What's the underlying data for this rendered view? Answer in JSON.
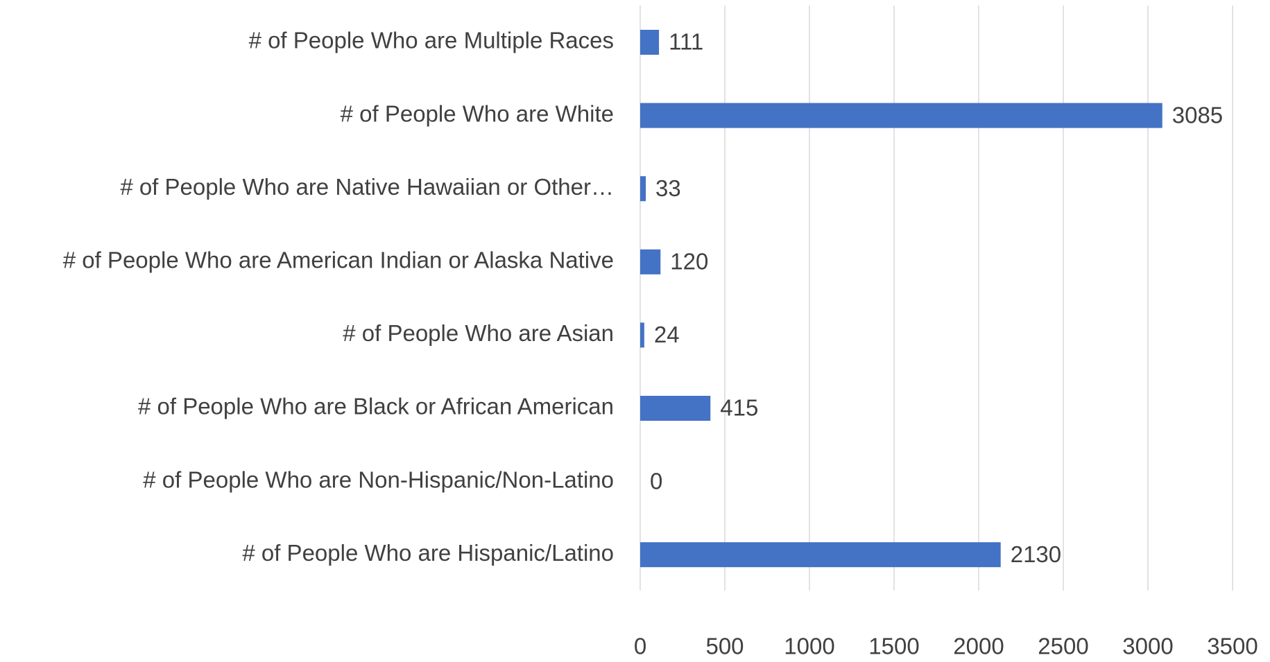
{
  "chart_data": {
    "type": "bar",
    "orientation": "horizontal",
    "categories": [
      "# of People Who are Multiple Races",
      "# of People Who are White",
      "# of People Who are Native Hawaiian or Other…",
      "# of People Who are American Indian or Alaska Native",
      "# of People Who are Asian",
      "# of People Who are Black or African American",
      "# of People Who are Non-Hispanic/Non-Latino",
      "# of People Who are Hispanic/Latino"
    ],
    "values": [
      111,
      3085,
      33,
      120,
      24,
      415,
      0,
      2130
    ],
    "color": "#4472c4",
    "xlim": [
      0,
      3500
    ],
    "xticks": [
      0,
      500,
      1000,
      1500,
      2000,
      2500,
      3000,
      3500
    ],
    "grid": true
  }
}
